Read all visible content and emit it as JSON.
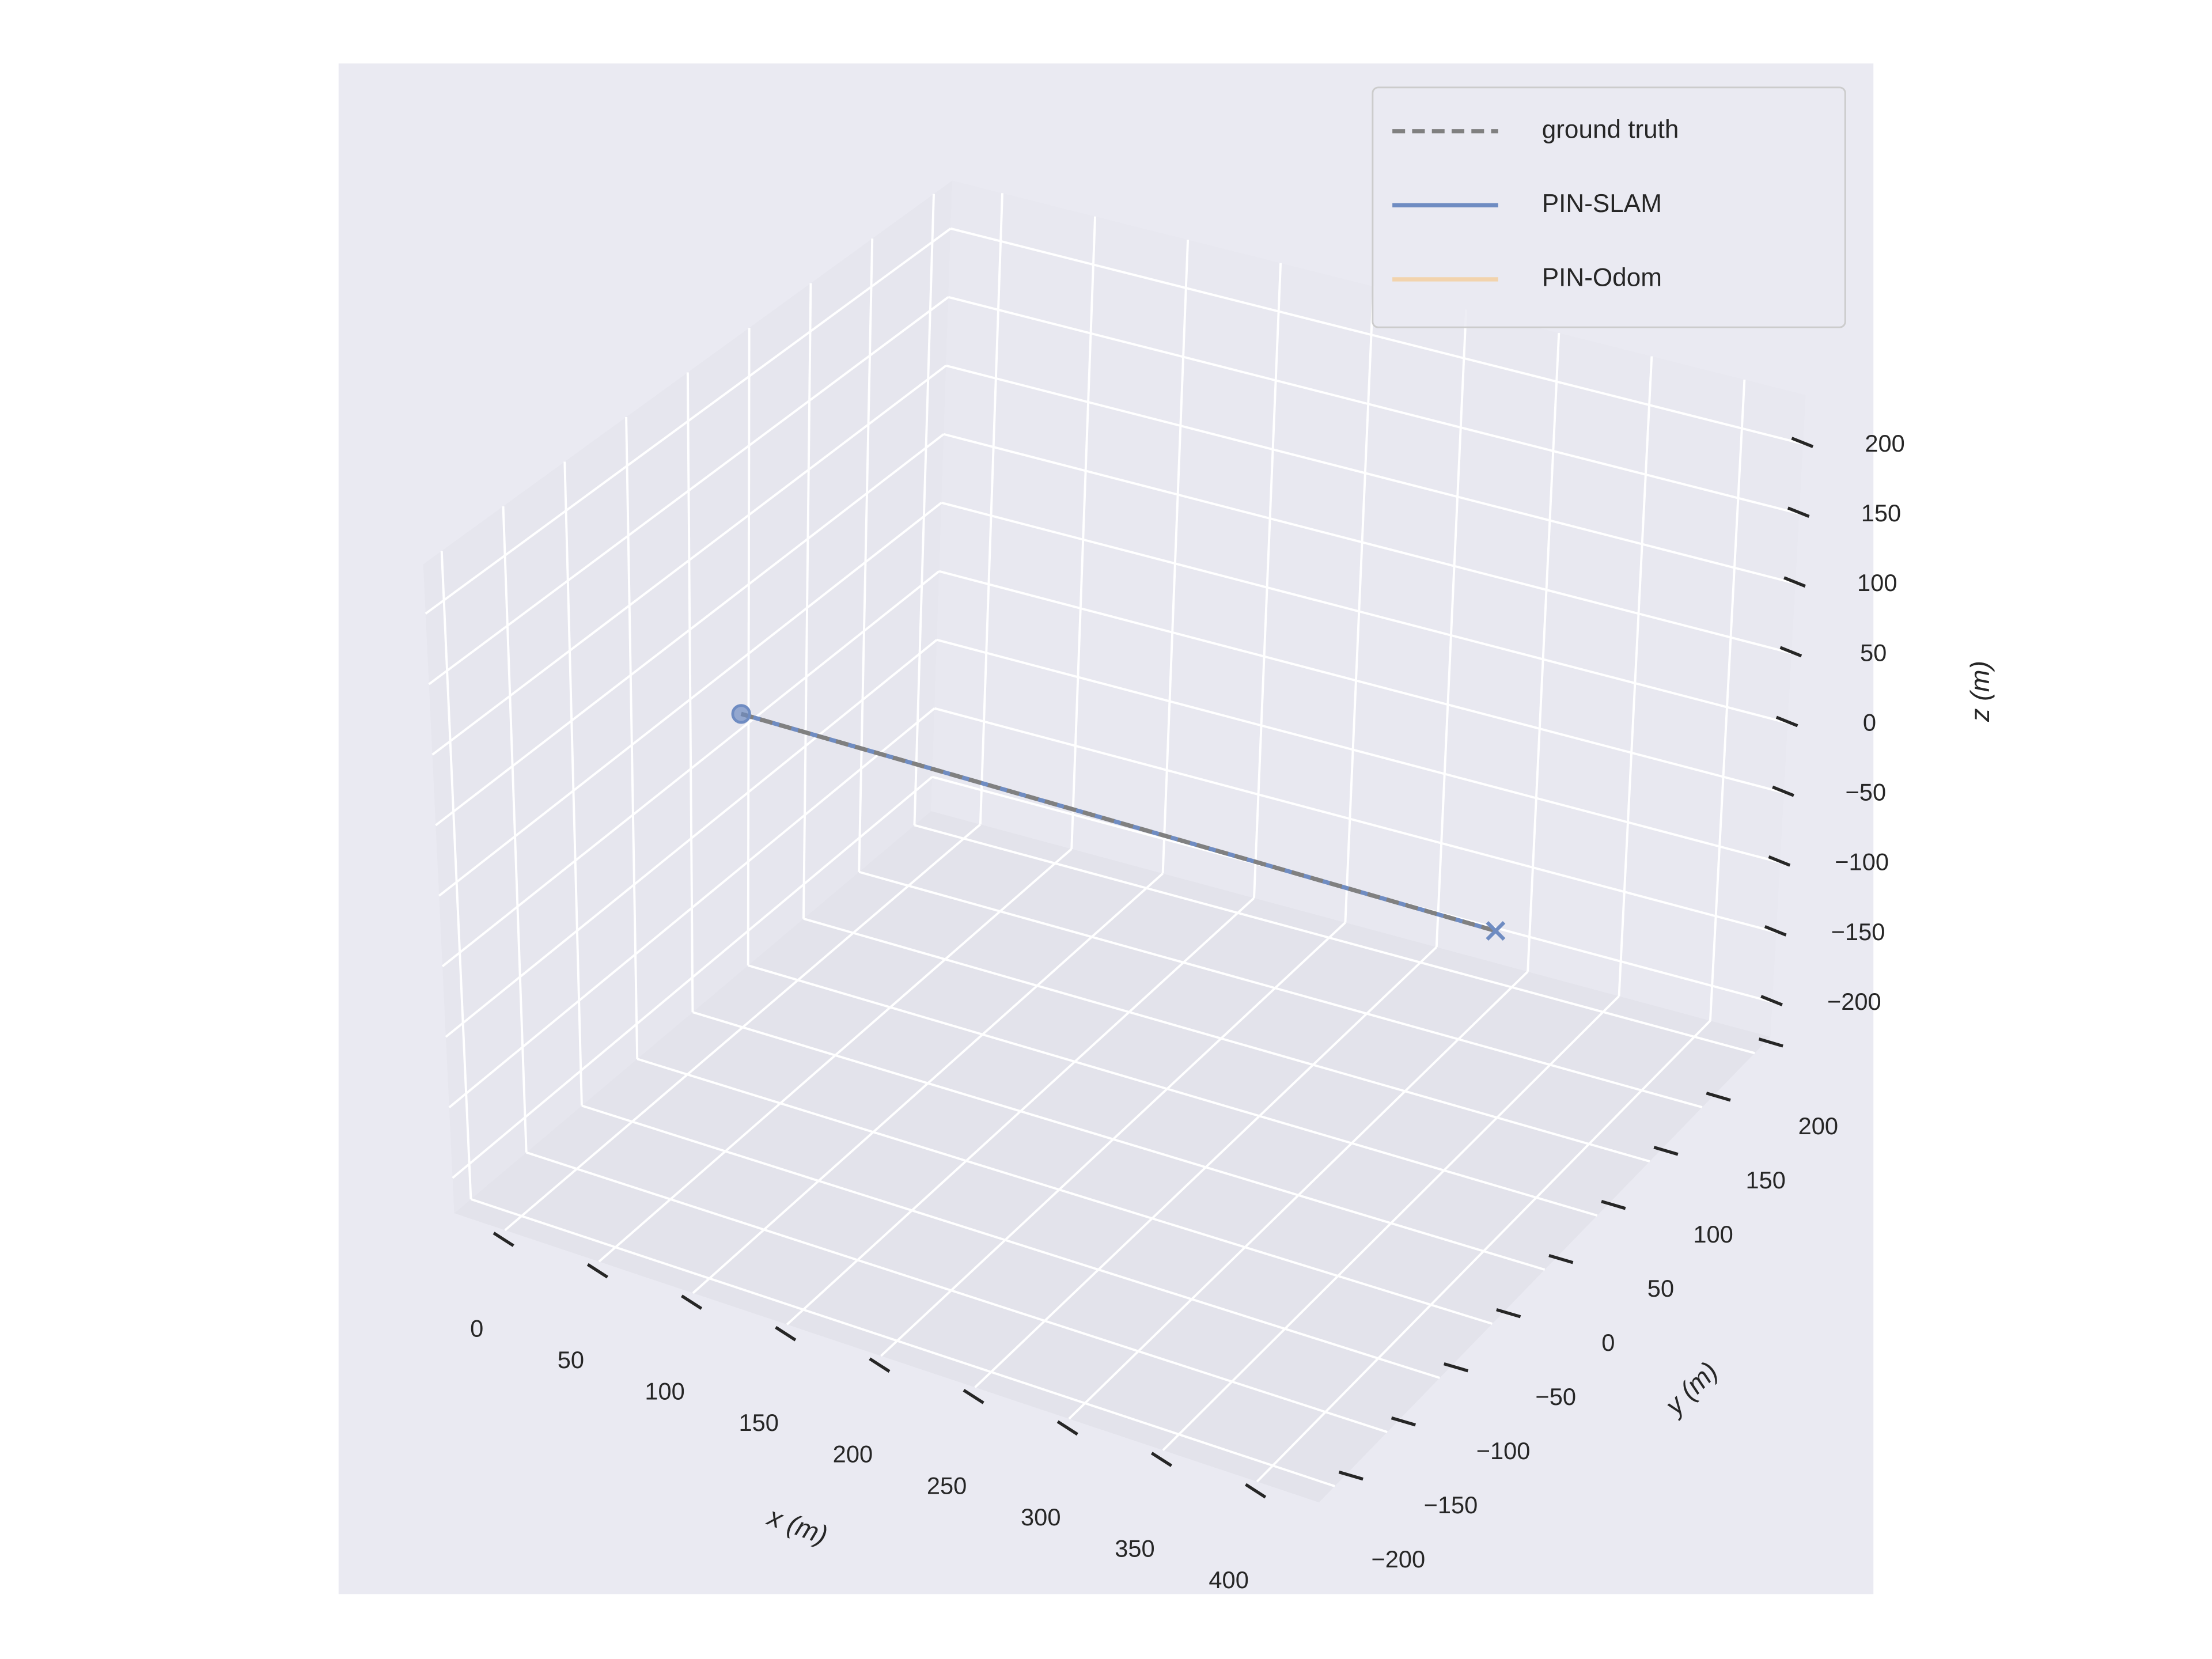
{
  "chart_data": {
    "type": "line3d",
    "xlabel": "x (m)",
    "ylabel": "y (m)",
    "zlabel": "z (m)",
    "xlim": [
      -27,
      433
    ],
    "ylim": [
      -215,
      215
    ],
    "zlim": [
      -225,
      235
    ],
    "xticks": [
      0,
      50,
      100,
      150,
      200,
      250,
      300,
      350,
      400
    ],
    "yticks": [
      {
        "value": -200,
        "label": "−200"
      },
      {
        "value": -150,
        "label": "−150"
      },
      {
        "value": -100,
        "label": "−100"
      },
      {
        "value": -50,
        "label": "−50"
      },
      0,
      50,
      100,
      150,
      200
    ],
    "zticks": [
      {
        "value": -200,
        "label": "−200"
      },
      {
        "value": -150,
        "label": "−150"
      },
      {
        "value": -100,
        "label": "−100"
      },
      {
        "value": -50,
        "label": "−50"
      },
      0,
      50,
      100,
      150,
      200
    ],
    "grid": true,
    "legend": "upper right",
    "series": [
      {
        "name": "ground truth",
        "color": "#808080",
        "linestyle": "dashed",
        "x": [
          0,
          100,
          200,
          300,
          400
        ],
        "y": [
          0,
          0,
          0,
          0,
          0
        ],
        "z": [
          0,
          0,
          0,
          0,
          0
        ]
      },
      {
        "name": "PIN-SLAM",
        "color": "#6f8cc2",
        "linestyle": "solid",
        "x": [
          0,
          100,
          200,
          300,
          400
        ],
        "y": [
          0,
          0,
          0,
          0,
          0
        ],
        "z": [
          0,
          0,
          0,
          0,
          0
        ]
      },
      {
        "name": "PIN-Odom",
        "color": "#f2d3ad",
        "linestyle": "solid",
        "x": [
          0,
          100,
          200,
          300,
          400
        ],
        "y": [
          0,
          0,
          0,
          0,
          0
        ],
        "z": [
          0,
          0,
          0,
          0,
          0
        ]
      }
    ]
  }
}
